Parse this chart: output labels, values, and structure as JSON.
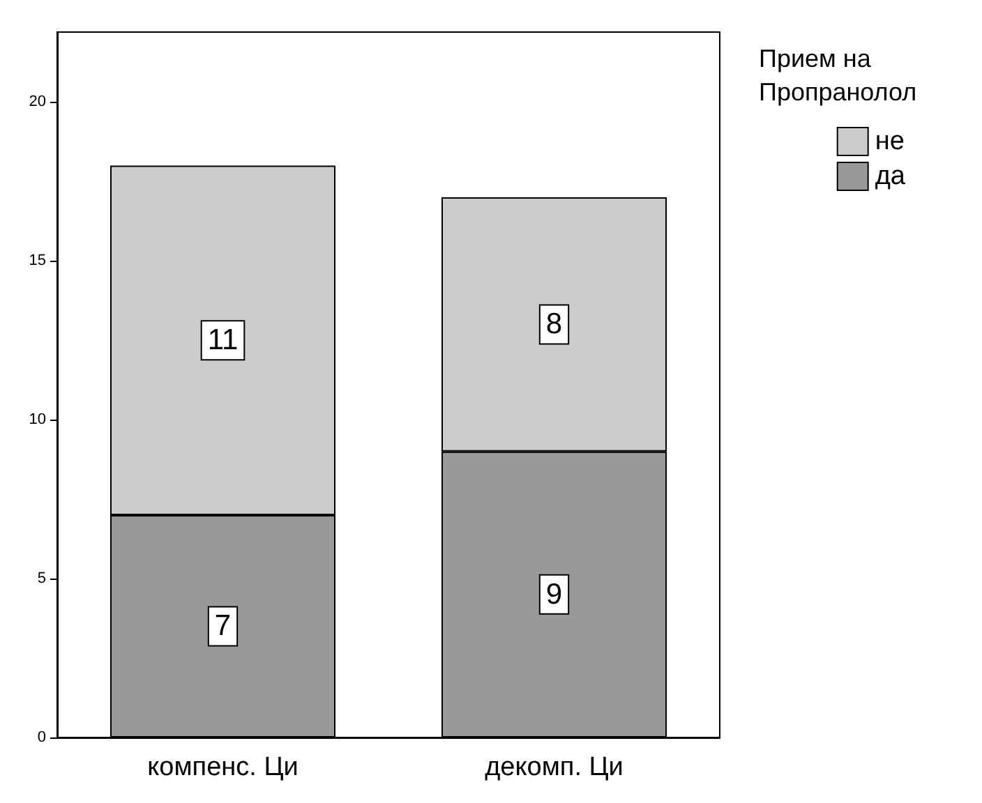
{
  "chart_data": {
    "type": "bar",
    "stacked": true,
    "legend_title": "Прием на Пропранолол",
    "categories": [
      "компенс. Ци",
      "декомп. Ци"
    ],
    "series": [
      {
        "name": "да",
        "color": "#999999",
        "values": [
          7,
          9
        ]
      },
      {
        "name": "не",
        "color": "#cccccc",
        "values": [
          11,
          8
        ]
      }
    ],
    "ylim": [
      0,
      22.2
    ],
    "yticks": [
      0,
      5,
      10,
      15,
      20
    ],
    "grid": false,
    "legend": "top right",
    "data_labels": true
  }
}
